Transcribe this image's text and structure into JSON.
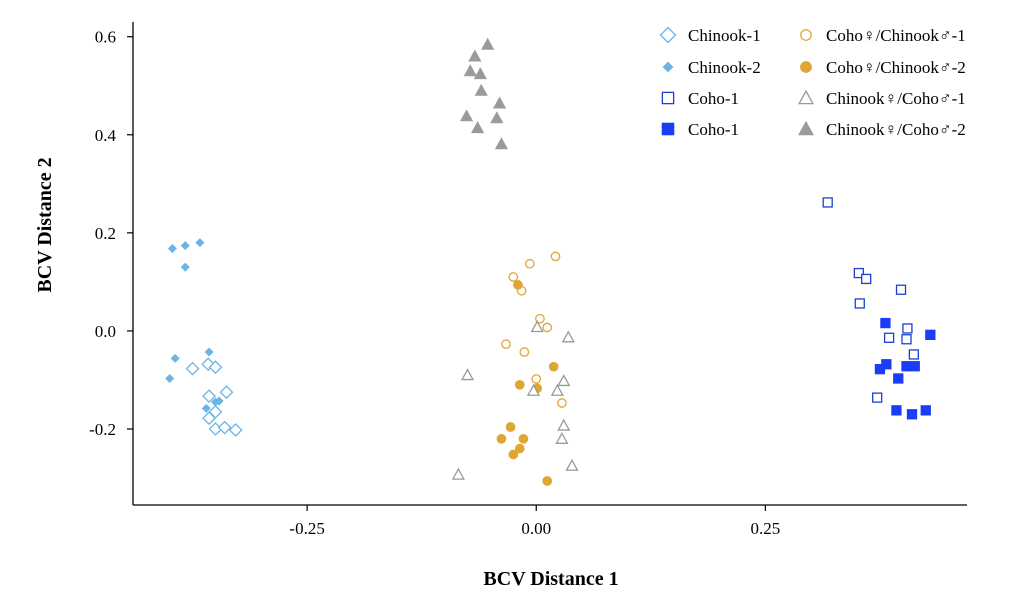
{
  "chart_data": {
    "type": "scatter",
    "title": "",
    "xlabel": "BCV Distance 1",
    "ylabel": "BCV Distance 2",
    "xlim": [
      -0.44,
      0.47
    ],
    "ylim": [
      -0.355,
      0.63
    ],
    "xticks": [
      -0.25,
      0.0,
      0.25
    ],
    "xtick_labels": [
      "-0.25",
      "0.00",
      "0.25"
    ],
    "yticks": [
      -0.2,
      0.0,
      0.2,
      0.4,
      0.6
    ],
    "ytick_labels": [
      "-0.2",
      "0.0",
      "0.2",
      "0.4",
      "0.6"
    ],
    "grid": false,
    "legend_position": "top-right",
    "series": [
      {
        "name": "Chinook-1",
        "marker": "diamond-open",
        "color": "#6cb4e4",
        "points": [
          [
            -0.375,
            -0.077
          ],
          [
            -0.358,
            -0.068
          ],
          [
            -0.35,
            -0.074
          ],
          [
            -0.357,
            -0.133
          ],
          [
            -0.338,
            -0.125
          ],
          [
            -0.35,
            -0.165
          ],
          [
            -0.357,
            -0.178
          ],
          [
            -0.35,
            -0.2
          ],
          [
            -0.34,
            -0.197
          ],
          [
            -0.328,
            -0.202
          ]
        ]
      },
      {
        "name": "Chinook-2",
        "marker": "diamond-filled",
        "color": "#6cb4e4",
        "points": [
          [
            -0.397,
            0.168
          ],
          [
            -0.383,
            0.174
          ],
          [
            -0.367,
            0.18
          ],
          [
            -0.383,
            0.13
          ],
          [
            -0.394,
            -0.056
          ],
          [
            -0.357,
            -0.043
          ],
          [
            -0.4,
            -0.097
          ],
          [
            -0.35,
            -0.145
          ],
          [
            -0.346,
            -0.143
          ],
          [
            -0.36,
            -0.158
          ]
        ]
      },
      {
        "name": "Coho-1",
        "marker": "square-open",
        "color": "#1f3fd0",
        "points": [
          [
            0.318,
            0.262
          ],
          [
            0.352,
            0.118
          ],
          [
            0.36,
            0.106
          ],
          [
            0.353,
            0.056
          ],
          [
            0.398,
            0.084
          ],
          [
            0.405,
            0.005
          ],
          [
            0.385,
            -0.014
          ],
          [
            0.404,
            -0.017
          ],
          [
            0.412,
            -0.048
          ],
          [
            0.372,
            -0.136
          ]
        ]
      },
      {
        "name": "Coho-1",
        "marker": "square-filled",
        "color": "#1a3df5",
        "points": [
          [
            0.381,
            0.016
          ],
          [
            0.43,
            -0.008
          ],
          [
            0.382,
            -0.068
          ],
          [
            0.375,
            -0.078
          ],
          [
            0.404,
            -0.072
          ],
          [
            0.413,
            -0.072
          ],
          [
            0.395,
            -0.097
          ],
          [
            0.393,
            -0.162
          ],
          [
            0.41,
            -0.17
          ],
          [
            0.425,
            -0.162
          ]
        ]
      },
      {
        "name": "Coho♀/Chinook♂-1",
        "marker": "circle-open",
        "color": "#e0a634",
        "points": [
          [
            -0.025,
            0.11
          ],
          [
            -0.016,
            0.082
          ],
          [
            -0.007,
            0.137
          ],
          [
            0.021,
            0.152
          ],
          [
            0.004,
            0.025
          ],
          [
            0.012,
            0.007
          ],
          [
            -0.033,
            -0.027
          ],
          [
            -0.013,
            -0.043
          ],
          [
            0.0,
            -0.098
          ],
          [
            0.028,
            -0.147
          ]
        ]
      },
      {
        "name": "Coho♀/Chinook♂-2",
        "marker": "circle-filled",
        "color": "#e0a634",
        "points": [
          [
            -0.02,
            0.094
          ],
          [
            -0.018,
            -0.11
          ],
          [
            0.001,
            -0.117
          ],
          [
            0.019,
            -0.073
          ],
          [
            -0.028,
            -0.196
          ],
          [
            -0.038,
            -0.22
          ],
          [
            -0.014,
            -0.22
          ],
          [
            -0.018,
            -0.24
          ],
          [
            -0.025,
            -0.252
          ],
          [
            0.012,
            -0.306
          ]
        ]
      },
      {
        "name": "Chinook♀/Coho♂-1",
        "marker": "triangle-open",
        "color": "#9a9a9a",
        "points": [
          [
            0.001,
            0.008
          ],
          [
            0.035,
            -0.013
          ],
          [
            -0.075,
            -0.09
          ],
          [
            -0.003,
            -0.122
          ],
          [
            0.023,
            -0.122
          ],
          [
            0.03,
            -0.102
          ],
          [
            0.03,
            -0.193
          ],
          [
            0.028,
            -0.22
          ],
          [
            0.039,
            -0.275
          ],
          [
            -0.085,
            -0.293
          ]
        ]
      },
      {
        "name": "Chinook♀/Coho♂-2",
        "marker": "triangle-filled",
        "color": "#9a9a9a",
        "points": [
          [
            -0.053,
            0.584
          ],
          [
            -0.067,
            0.56
          ],
          [
            -0.072,
            0.53
          ],
          [
            -0.061,
            0.524
          ],
          [
            -0.06,
            0.49
          ],
          [
            -0.04,
            0.464
          ],
          [
            -0.076,
            0.438
          ],
          [
            -0.043,
            0.434
          ],
          [
            -0.064,
            0.414
          ],
          [
            -0.038,
            0.381
          ]
        ]
      }
    ]
  }
}
